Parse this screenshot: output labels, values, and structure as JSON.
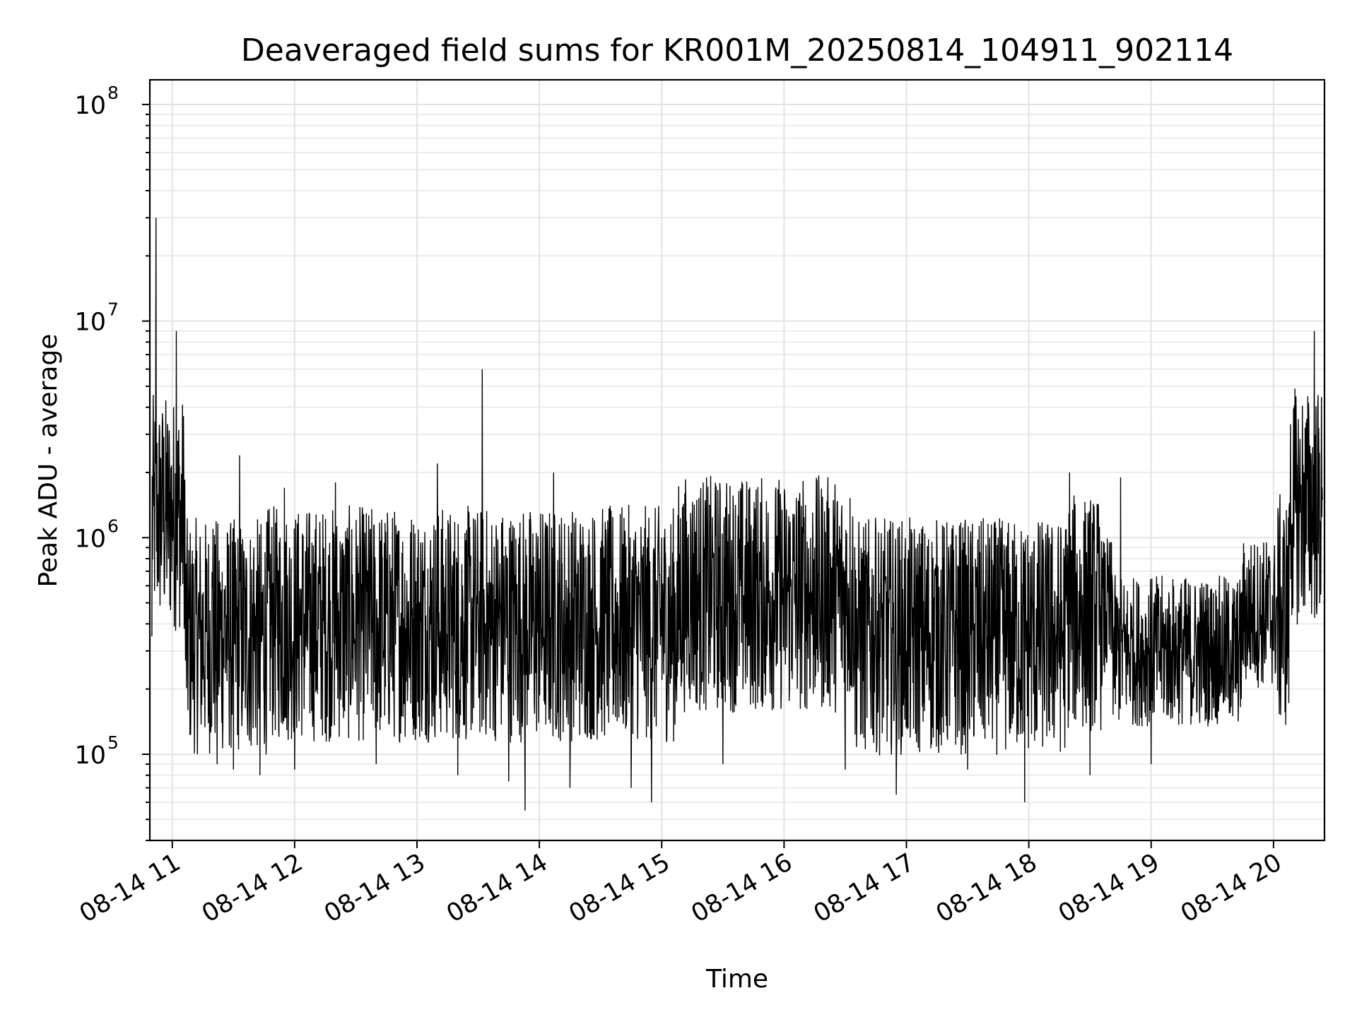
{
  "chart_data": {
    "type": "line",
    "title": "Deaveraged field sums for KR001M_20250814_104911_902114",
    "xlabel": "Time",
    "ylabel": "Peak ADU - average",
    "yscale": "log",
    "x_range": [
      "2025-08-14 10:49",
      "2025-08-14 20:25"
    ],
    "ylim": [
      40000,
      130000000
    ],
    "grid": "on (major and minor)",
    "legend": "none",
    "line_color": "#000000",
    "x_ticks": [
      {
        "t": "2025-08-14 11:00",
        "label": "08-14 11"
      },
      {
        "t": "2025-08-14 12:00",
        "label": "08-14 12"
      },
      {
        "t": "2025-08-14 13:00",
        "label": "08-14 13"
      },
      {
        "t": "2025-08-14 14:00",
        "label": "08-14 14"
      },
      {
        "t": "2025-08-14 15:00",
        "label": "08-14 15"
      },
      {
        "t": "2025-08-14 16:00",
        "label": "08-14 16"
      },
      {
        "t": "2025-08-14 17:00",
        "label": "08-14 17"
      },
      {
        "t": "2025-08-14 18:00",
        "label": "08-14 18"
      },
      {
        "t": "2025-08-14 19:00",
        "label": "08-14 19"
      },
      {
        "t": "2025-08-14 20:00",
        "label": "08-14 20"
      }
    ],
    "y_ticks": [
      {
        "value": 100000,
        "base": "10",
        "exp": "5"
      },
      {
        "value": 1000000,
        "base": "10",
        "exp": "6"
      },
      {
        "value": 10000000,
        "base": "10",
        "exp": "7"
      },
      {
        "value": 100000000,
        "base": "10",
        "exp": "8"
      }
    ],
    "series": [
      {
        "points": [
          [
            "2025-08-14 10:50",
            350000
          ],
          [
            "2025-08-14 10:51",
            1400000
          ],
          [
            "2025-08-14 10:52",
            30000000
          ],
          [
            "2025-08-14 10:53",
            1300000
          ],
          [
            "2025-08-14 10:55",
            2700000
          ],
          [
            "2025-08-14 10:58",
            1200000
          ],
          [
            "2025-08-14 11:00",
            1500000
          ],
          [
            "2025-08-14 11:02",
            9000000
          ],
          [
            "2025-08-14 11:04",
            600000
          ],
          [
            "2025-08-14 11:06",
            500000
          ],
          [
            "2025-08-14 11:10",
            300000
          ],
          [
            "2025-08-14 11:14",
            180000
          ],
          [
            "2025-08-14 11:18",
            150000
          ],
          [
            "2025-08-14 11:20",
            1100000
          ],
          [
            "2025-08-14 11:22",
            90000
          ],
          [
            "2025-08-14 11:26",
            600000
          ],
          [
            "2025-08-14 11:30",
            85000
          ],
          [
            "2025-08-14 11:33",
            2400000
          ],
          [
            "2025-08-14 11:36",
            300000
          ],
          [
            "2025-08-14 11:40",
            900000
          ],
          [
            "2025-08-14 11:43",
            80000
          ],
          [
            "2025-08-14 11:50",
            700000
          ],
          [
            "2025-08-14 11:55",
            1700000
          ],
          [
            "2025-08-14 12:00",
            85000
          ],
          [
            "2025-08-14 12:10",
            800000
          ],
          [
            "2025-08-14 12:20",
            1800000
          ],
          [
            "2025-08-14 12:30",
            500000
          ],
          [
            "2025-08-14 12:40",
            90000
          ],
          [
            "2025-08-14 12:50",
            600000
          ],
          [
            "2025-08-14 13:00",
            300000
          ],
          [
            "2025-08-14 13:10",
            2200000
          ],
          [
            "2025-08-14 13:20",
            80000
          ],
          [
            "2025-08-14 13:30",
            400000
          ],
          [
            "2025-08-14 13:32",
            6000000
          ],
          [
            "2025-08-14 13:35",
            200000
          ],
          [
            "2025-08-14 13:45",
            75000
          ],
          [
            "2025-08-14 13:53",
            55000
          ],
          [
            "2025-08-14 14:00",
            800000
          ],
          [
            "2025-08-14 14:07",
            2000000
          ],
          [
            "2025-08-14 14:15",
            70000
          ],
          [
            "2025-08-14 14:30",
            900000
          ],
          [
            "2025-08-14 14:45",
            70000
          ],
          [
            "2025-08-14 14:55",
            60000
          ],
          [
            "2025-08-14 15:00",
            1000000
          ],
          [
            "2025-08-14 15:15",
            1200000
          ],
          [
            "2025-08-14 15:30",
            90000
          ],
          [
            "2025-08-14 15:45",
            1100000
          ],
          [
            "2025-08-14 16:00",
            300000
          ],
          [
            "2025-08-14 16:15",
            900000
          ],
          [
            "2025-08-14 16:30",
            85000
          ],
          [
            "2025-08-14 16:45",
            1100000
          ],
          [
            "2025-08-14 16:55",
            65000
          ],
          [
            "2025-08-14 17:00",
            300000
          ],
          [
            "2025-08-14 17:15",
            900000
          ],
          [
            "2025-08-14 17:30",
            85000
          ],
          [
            "2025-08-14 17:45",
            1000000
          ],
          [
            "2025-08-14 17:58",
            60000
          ],
          [
            "2025-08-14 18:10",
            1000000
          ],
          [
            "2025-08-14 18:20",
            2000000
          ],
          [
            "2025-08-14 18:30",
            80000
          ],
          [
            "2025-08-14 18:45",
            1900000
          ],
          [
            "2025-08-14 18:50",
            500000
          ],
          [
            "2025-08-14 19:00",
            90000
          ],
          [
            "2025-08-14 19:10",
            300000
          ],
          [
            "2025-08-14 19:20",
            150000
          ],
          [
            "2025-08-14 19:30",
            350000
          ],
          [
            "2025-08-14 19:40",
            150000
          ],
          [
            "2025-08-14 19:50",
            600000
          ],
          [
            "2025-08-14 20:00",
            300000
          ],
          [
            "2025-08-14 20:10",
            900000
          ],
          [
            "2025-08-14 20:15",
            2000000
          ],
          [
            "2025-08-14 20:20",
            9000000
          ],
          [
            "2025-08-14 20:24",
            1500000
          ]
        ]
      }
    ]
  }
}
